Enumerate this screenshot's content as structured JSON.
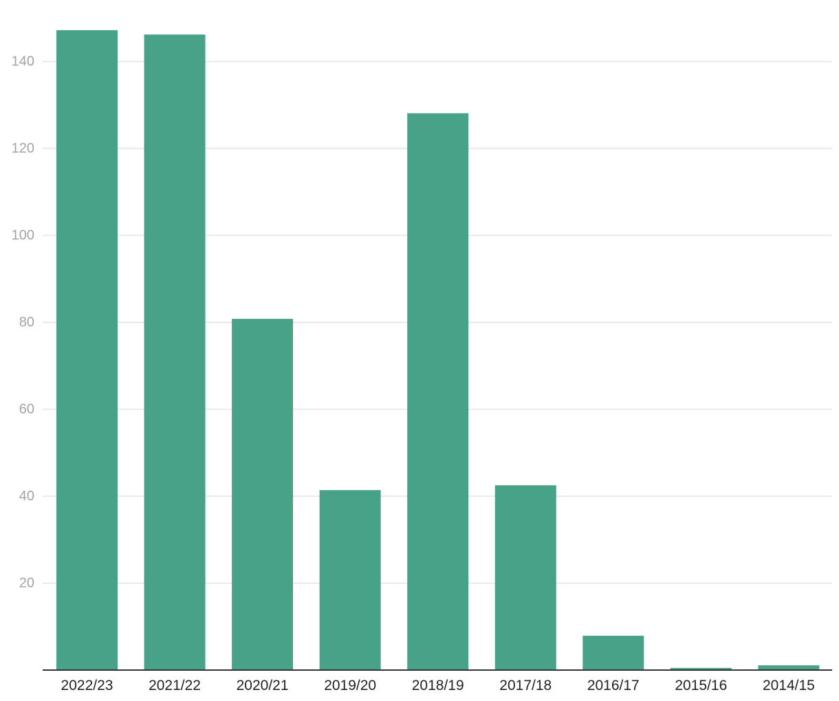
{
  "chart_data": {
    "type": "bar",
    "title": "",
    "xlabel": "",
    "ylabel": "",
    "categories": [
      "2022/23",
      "2021/22",
      "2020/21",
      "2019/20",
      "2018/19",
      "2017/18",
      "2016/17",
      "2015/16",
      "2014/15"
    ],
    "values": [
      147.2,
      146.2,
      80.8,
      41.4,
      128.1,
      42.5,
      7.9,
      0.5,
      1.1
    ],
    "ylim": [
      0,
      150
    ],
    "yticks": [
      20,
      40,
      60,
      80,
      100,
      120,
      140
    ],
    "grid": true,
    "legend": "none",
    "colors": {
      "bar": "#47a287",
      "grid": "#e2e2e2",
      "baseline": "#333333",
      "y_tick_text": "#a3a3a3",
      "x_tick_text": "#222222"
    }
  }
}
